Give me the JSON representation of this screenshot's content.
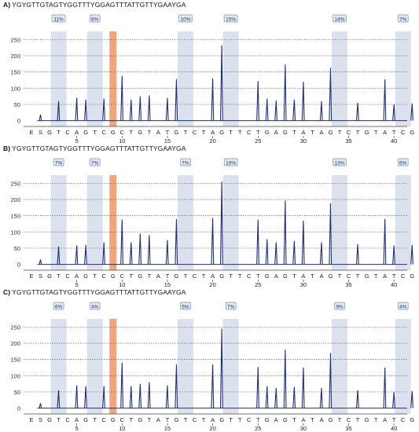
{
  "colors": {
    "trace": "#1f2f7a",
    "shade": "#dbe2ed",
    "highlight": "#f2a57a",
    "badge_bg": "#e4eaf5",
    "badge_border": "#7f92b8",
    "grid": "#6b6b6b",
    "axis_text": "#333333"
  },
  "chart_data": [
    {
      "type": "bar",
      "panel_label": "A)",
      "sequence": "YGYGTTGTAGTYGGTTTYGGAGTTTATTGTTYGAAYGA",
      "y_ticks": [
        0,
        50,
        100,
        150,
        200,
        250
      ],
      "ylim": [
        -18,
        275
      ],
      "x_tick_labels": [
        "5",
        "10",
        "15",
        "20",
        "25",
        "30",
        "35",
        "40"
      ],
      "base_calls": [
        "E",
        "S",
        "G",
        "T",
        "C",
        "A",
        "G",
        "T",
        "C",
        "G",
        "C",
        "T",
        "G",
        "T",
        "A",
        "T",
        "G",
        "T",
        "C",
        "T",
        "A",
        "G",
        "T",
        "T",
        "C",
        "T",
        "G",
        "A",
        "G",
        "T",
        "A",
        "T",
        "A",
        "G",
        "T",
        "C",
        "T",
        "G",
        "T",
        "A",
        "T",
        "C",
        "G"
      ],
      "highlight_position": 9,
      "cpg_sites": [
        {
          "position": 3,
          "label": "11%"
        },
        {
          "position": 7,
          "label": "8%"
        },
        {
          "position": 17,
          "label": "10%"
        },
        {
          "position": 22,
          "label": "15%"
        },
        {
          "position": 34,
          "label": "14%"
        },
        {
          "position": 41,
          "label": "7%"
        }
      ],
      "peaks": [
        {
          "x": 1,
          "y": 18
        },
        {
          "x": 3,
          "y": 60
        },
        {
          "x": 5,
          "y": 70
        },
        {
          "x": 6,
          "y": 65
        },
        {
          "x": 8,
          "y": 68
        },
        {
          "x": 10,
          "y": 138
        },
        {
          "x": 11,
          "y": 65
        },
        {
          "x": 12,
          "y": 75
        },
        {
          "x": 13,
          "y": 78
        },
        {
          "x": 15,
          "y": 70
        },
        {
          "x": 16,
          "y": 128
        },
        {
          "x": 20,
          "y": 130
        },
        {
          "x": 21,
          "y": 232
        },
        {
          "x": 25,
          "y": 122
        },
        {
          "x": 26,
          "y": 68
        },
        {
          "x": 27,
          "y": 62
        },
        {
          "x": 28,
          "y": 173
        },
        {
          "x": 29,
          "y": 65
        },
        {
          "x": 30,
          "y": 120
        },
        {
          "x": 32,
          "y": 60
        },
        {
          "x": 33,
          "y": 163
        },
        {
          "x": 36,
          "y": 55
        },
        {
          "x": 39,
          "y": 127
        },
        {
          "x": 40,
          "y": 50
        },
        {
          "x": 42,
          "y": 53
        }
      ]
    },
    {
      "type": "bar",
      "panel_label": "B)",
      "sequence": "YGYGTTGTAGTYGGTTTYGGAGTTTATTGTTYGAAYGA",
      "y_ticks": [
        0,
        50,
        100,
        150,
        200,
        250
      ],
      "ylim": [
        -18,
        275
      ],
      "x_tick_labels": [
        "5",
        "10",
        "15",
        "20",
        "25",
        "30",
        "35",
        "40"
      ],
      "base_calls": [
        "E",
        "S",
        "G",
        "T",
        "C",
        "A",
        "G",
        "T",
        "C",
        "G",
        "C",
        "T",
        "G",
        "T",
        "A",
        "T",
        "G",
        "T",
        "C",
        "T",
        "A",
        "G",
        "T",
        "T",
        "C",
        "T",
        "G",
        "A",
        "G",
        "T",
        "A",
        "T",
        "A",
        "G",
        "T",
        "C",
        "T",
        "G",
        "T",
        "A",
        "T",
        "C",
        "G"
      ],
      "highlight_position": 9,
      "cpg_sites": [
        {
          "position": 3,
          "label": "7%"
        },
        {
          "position": 7,
          "label": "7%"
        },
        {
          "position": 17,
          "label": "7%"
        },
        {
          "position": 22,
          "label": "10%"
        },
        {
          "position": 34,
          "label": "13%"
        },
        {
          "position": 41,
          "label": "6%"
        }
      ],
      "peaks": [
        {
          "x": 1,
          "y": 15
        },
        {
          "x": 3,
          "y": 55
        },
        {
          "x": 5,
          "y": 58
        },
        {
          "x": 6,
          "y": 60
        },
        {
          "x": 8,
          "y": 68
        },
        {
          "x": 10,
          "y": 138
        },
        {
          "x": 11,
          "y": 68
        },
        {
          "x": 12,
          "y": 95
        },
        {
          "x": 13,
          "y": 90
        },
        {
          "x": 15,
          "y": 75
        },
        {
          "x": 16,
          "y": 140
        },
        {
          "x": 20,
          "y": 143
        },
        {
          "x": 21,
          "y": 255
        },
        {
          "x": 25,
          "y": 138
        },
        {
          "x": 26,
          "y": 78
        },
        {
          "x": 27,
          "y": 68
        },
        {
          "x": 28,
          "y": 197
        },
        {
          "x": 29,
          "y": 72
        },
        {
          "x": 30,
          "y": 135
        },
        {
          "x": 32,
          "y": 68
        },
        {
          "x": 33,
          "y": 188
        },
        {
          "x": 36,
          "y": 62
        },
        {
          "x": 39,
          "y": 140
        },
        {
          "x": 40,
          "y": 58
        },
        {
          "x": 42,
          "y": 60
        }
      ]
    },
    {
      "type": "bar",
      "panel_label": "C)",
      "sequence": "YGYGTTGTAGTYGGTTTYGGAGTTTATTGTTYGAAYGA",
      "y_ticks": [
        0,
        50,
        100,
        150,
        200,
        250
      ],
      "ylim": [
        -18,
        275
      ],
      "x_tick_labels": [
        "5",
        "10",
        "15",
        "20",
        "25",
        "30",
        "35",
        "40"
      ],
      "base_calls": [
        "E",
        "S",
        "G",
        "T",
        "C",
        "A",
        "G",
        "T",
        "C",
        "G",
        "C",
        "T",
        "G",
        "T",
        "A",
        "T",
        "G",
        "T",
        "C",
        "T",
        "A",
        "G",
        "T",
        "T",
        "C",
        "T",
        "G",
        "A",
        "G",
        "T",
        "A",
        "T",
        "A",
        "G",
        "T",
        "C",
        "T",
        "G",
        "T",
        "A",
        "T",
        "C",
        "G"
      ],
      "highlight_position": 9,
      "cpg_sites": [
        {
          "position": 3,
          "label": "6%"
        },
        {
          "position": 7,
          "label": "4%"
        },
        {
          "position": 17,
          "label": "5%"
        },
        {
          "position": 22,
          "label": "7%"
        },
        {
          "position": 34,
          "label": "9%"
        },
        {
          "position": 41,
          "label": "4%"
        }
      ],
      "peaks": [
        {
          "x": 1,
          "y": 15
        },
        {
          "x": 3,
          "y": 55
        },
        {
          "x": 5,
          "y": 70
        },
        {
          "x": 6,
          "y": 68
        },
        {
          "x": 8,
          "y": 68
        },
        {
          "x": 10,
          "y": 140
        },
        {
          "x": 11,
          "y": 68
        },
        {
          "x": 12,
          "y": 75
        },
        {
          "x": 13,
          "y": 80
        },
        {
          "x": 15,
          "y": 70
        },
        {
          "x": 16,
          "y": 135
        },
        {
          "x": 20,
          "y": 135
        },
        {
          "x": 21,
          "y": 245
        },
        {
          "x": 25,
          "y": 127
        },
        {
          "x": 26,
          "y": 68
        },
        {
          "x": 27,
          "y": 62
        },
        {
          "x": 28,
          "y": 180
        },
        {
          "x": 29,
          "y": 65
        },
        {
          "x": 30,
          "y": 125
        },
        {
          "x": 32,
          "y": 62
        },
        {
          "x": 33,
          "y": 170
        },
        {
          "x": 36,
          "y": 55
        },
        {
          "x": 39,
          "y": 125
        },
        {
          "x": 40,
          "y": 50
        },
        {
          "x": 42,
          "y": 53
        }
      ]
    }
  ]
}
